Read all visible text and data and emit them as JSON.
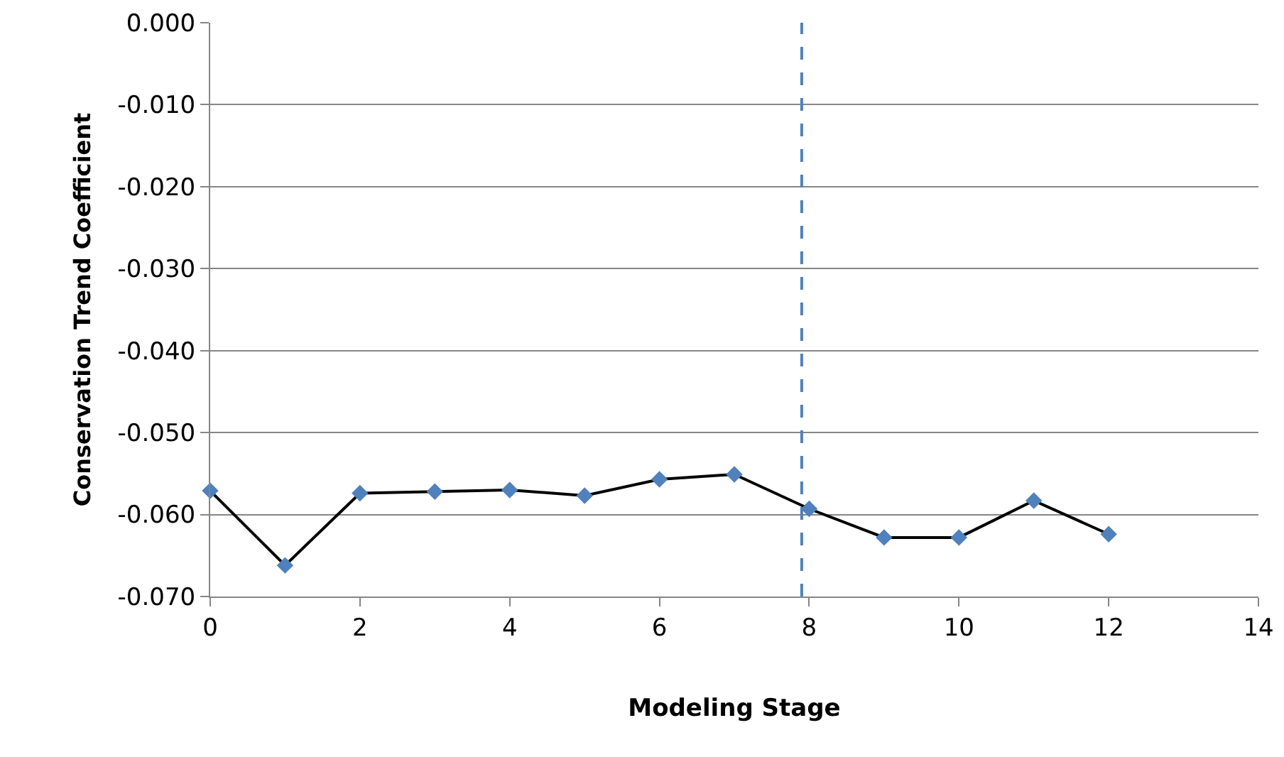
{
  "chart_data": {
    "type": "line",
    "xlabel": "Modeling Stage",
    "ylabel": "Conservation Trend Coefficient",
    "x": [
      0,
      1,
      2,
      3,
      4,
      5,
      6,
      7,
      8,
      9,
      10,
      11,
      12
    ],
    "series": [
      {
        "color": "#4f81bd",
        "values": [
          -0.0571,
          -0.0662,
          -0.0574,
          -0.0572,
          -0.057,
          -0.0577,
          -0.0557,
          -0.0551,
          -0.0593,
          -0.0628,
          -0.0628,
          -0.0583,
          -0.0624
        ]
      }
    ],
    "marker": "diamond",
    "line_style": "solid",
    "xlim": [
      0,
      14
    ],
    "xticks": [
      0,
      2,
      4,
      6,
      8,
      10,
      12,
      14
    ],
    "ylim": [
      -0.07,
      0
    ],
    "yticks": [
      {
        "value": -0.07,
        "label": "-0.070"
      },
      {
        "value": -0.06,
        "label": "-0.060"
      },
      {
        "value": -0.05,
        "label": "-0.050"
      },
      {
        "value": -0.04,
        "label": "-0.040"
      },
      {
        "value": -0.03,
        "label": "-0.030"
      },
      {
        "value": -0.02,
        "label": "-0.020"
      },
      {
        "value": -0.01,
        "label": "-0.010"
      },
      {
        "value": 0,
        "label": "0.000"
      }
    ],
    "grid": "y",
    "ref_lines": [
      {
        "axis": "x",
        "value": 7.9,
        "color": "#4f81bd",
        "line_style": "dashed"
      }
    ]
  }
}
